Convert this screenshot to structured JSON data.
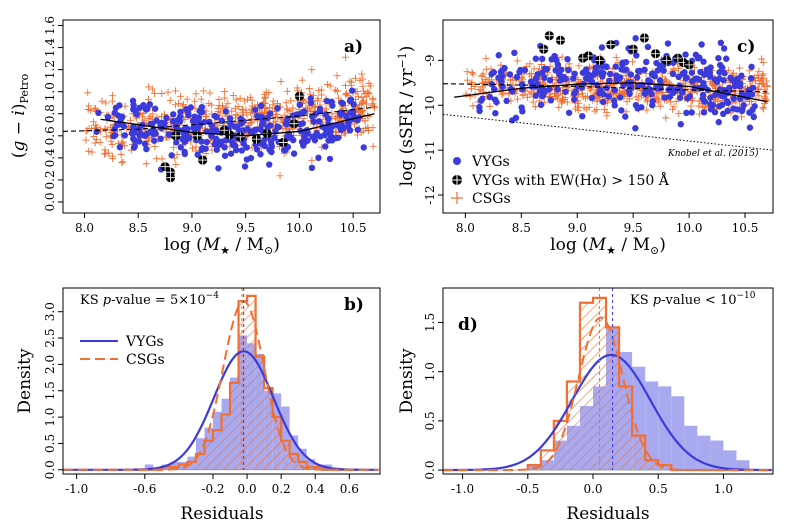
{
  "colors": {
    "vyg": "#3b3bdb",
    "csg": "#f07033",
    "vyg_fill": "#a9a9ef",
    "black": "#000000"
  },
  "chart_data": [
    {
      "id": "a",
      "type": "scatter",
      "panel_label": "a)",
      "xlabel": "log (M★ / M⊙)",
      "ylabel": "(g − i)Petro",
      "xlim": [
        7.8,
        10.75
      ],
      "ylim": [
        -0.1,
        1.65
      ],
      "xticks": [
        8.0,
        8.5,
        9.0,
        9.5,
        10.0,
        10.5
      ],
      "xtick_labels": [
        "8.0",
        "8.5",
        "9.0",
        "9.5",
        "10.0",
        "10.5"
      ],
      "yticks": [
        0.0,
        0.2,
        0.4,
        0.6,
        0.8,
        1.0,
        1.2,
        1.4,
        1.6
      ],
      "ytick_labels": [
        "0.0",
        "0.2",
        "0.4",
        "0.6",
        "0.8",
        "1.0",
        "1.2",
        "1.4",
        "1.6"
      ],
      "vyg_fit": {
        "x": [
          8.15,
          9.0,
          9.5,
          10.0,
          10.7
        ],
        "y": [
          0.75,
          0.63,
          0.6,
          0.64,
          0.8
        ]
      },
      "csg_fit": {
        "x": [
          7.8,
          8.5,
          9.0,
          9.5,
          10.0,
          10.7
        ],
        "y": [
          0.64,
          0.66,
          0.7,
          0.74,
          0.78,
          0.86
        ]
      },
      "halpha_points": {
        "x": [
          8.75,
          8.8,
          8.8,
          8.85,
          9.05,
          9.1,
          9.3,
          9.35,
          9.45,
          9.6,
          9.7,
          9.85,
          9.95,
          10.0
        ],
        "y": [
          0.32,
          0.27,
          0.22,
          0.6,
          0.6,
          0.38,
          0.65,
          0.61,
          0.59,
          0.57,
          0.62,
          0.54,
          0.71,
          0.96
        ]
      }
    },
    {
      "id": "c",
      "type": "scatter",
      "panel_label": "c)",
      "xlabel": "log (M★ / M⊙)",
      "ylabel": "log (sSFR / yr⁻¹)",
      "xlim": [
        7.8,
        10.75
      ],
      "ylim": [
        -12.4,
        -8.1
      ],
      "xticks": [
        8.0,
        8.5,
        9.0,
        9.5,
        10.0,
        10.5
      ],
      "xtick_labels": [
        "8.0",
        "8.5",
        "9.0",
        "9.5",
        "10.0",
        "10.5"
      ],
      "yticks": [
        -12,
        -11,
        -10,
        -9
      ],
      "ytick_labels": [
        "-12",
        "-11",
        "-10",
        "-9"
      ],
      "vyg_fit": {
        "x": [
          7.9,
          8.5,
          9.0,
          9.5,
          10.0,
          10.7
        ],
        "y": [
          -9.82,
          -9.62,
          -9.53,
          -9.5,
          -9.58,
          -9.92
        ]
      },
      "csg_fit": {
        "x": [
          7.8,
          8.5,
          9.0,
          9.5,
          10.0,
          10.7
        ],
        "y": [
          -9.52,
          -9.55,
          -9.58,
          -9.62,
          -9.66,
          -9.7
        ]
      },
      "knobel_line": {
        "x": [
          7.8,
          10.75
        ],
        "y": [
          -10.2,
          -11.0
        ],
        "label": "Knobel et al. (2015)"
      },
      "halpha_points": {
        "x": [
          8.75,
          8.85,
          8.7,
          9.1,
          9.2,
          9.3,
          9.5,
          9.6,
          9.7,
          9.9,
          9.8,
          9.95,
          10.0,
          9.05
        ],
        "y": [
          -8.45,
          -8.55,
          -8.75,
          -8.9,
          -9.0,
          -8.65,
          -8.75,
          -8.5,
          -8.85,
          -8.95,
          -9.0,
          -9.05,
          -9.1,
          -8.95
        ]
      },
      "legend": [
        "VYGs",
        "VYGs with EW(Hα) > 150 Å",
        "CSGs"
      ]
    },
    {
      "id": "b",
      "type": "bar",
      "panel_label": "b)",
      "xlabel": "Residuals",
      "ylabel": "Density",
      "xlim": [
        -1.08,
        0.78
      ],
      "ylim": [
        -0.08,
        3.45
      ],
      "xticks": [
        -1.0,
        -0.6,
        -0.2,
        0.0,
        0.2,
        0.4,
        0.6
      ],
      "xtick_labels": [
        "-1.0",
        "-0.6",
        "-0.2",
        "0.0",
        "0.2",
        "0.4",
        "0.6"
      ],
      "yticks": [
        0.0,
        0.5,
        1.0,
        1.5,
        2.0,
        2.5,
        3.0
      ],
      "ytick_labels": [
        "0.0",
        "0.5",
        "1.0",
        "1.5",
        "2.0",
        "2.5",
        "3.0"
      ],
      "bin_edges": [
        -0.65,
        -0.6,
        -0.55,
        -0.5,
        -0.45,
        -0.4,
        -0.35,
        -0.3,
        -0.25,
        -0.2,
        -0.15,
        -0.1,
        -0.05,
        0.0,
        0.05,
        0.1,
        0.15,
        0.2,
        0.25,
        0.3,
        0.35,
        0.4,
        0.45,
        0.5,
        0.55,
        0.6,
        0.65
      ],
      "vyg_hist": [
        0.0,
        0.1,
        0.0,
        0.1,
        0.15,
        0.15,
        0.25,
        0.6,
        0.8,
        1.1,
        1.35,
        1.75,
        2.55,
        2.4,
        2.2,
        1.5,
        1.45,
        1.2,
        0.65,
        0.4,
        0.2,
        0.1,
        0.1,
        0.0,
        0.0,
        0.0
      ],
      "csg_hist": [
        0.0,
        0.0,
        0.0,
        0.05,
        0.05,
        0.1,
        0.15,
        0.3,
        0.55,
        0.75,
        1.05,
        1.65,
        3.2,
        3.3,
        2.15,
        1.55,
        1.0,
        0.55,
        0.3,
        0.15,
        0.05,
        0.05,
        0.0,
        0.0,
        0.0,
        0.0
      ],
      "vyg_kde": {
        "mean": -0.02,
        "sd": 0.175,
        "scale": 2.25
      },
      "csg_kde": {
        "mean": -0.02,
        "sd": 0.12,
        "scale": 3.2
      },
      "vyg_median": -0.02,
      "csg_median": -0.03,
      "annotation": {
        "prefix": "KS ",
        "italic": "p",
        "suffix": "-value = 5×10",
        "sup": "−4"
      },
      "legend": [
        "VYGs",
        "CSGs"
      ]
    },
    {
      "id": "d",
      "type": "bar",
      "panel_label": "d)",
      "xlabel": "Residuals",
      "ylabel": "Density",
      "xlim": [
        -1.15,
        1.38
      ],
      "ylim": [
        -0.04,
        1.85
      ],
      "xticks": [
        -1.0,
        -0.5,
        0.0,
        0.5,
        1.0
      ],
      "xtick_labels": [
        "-1.0",
        "-0.5",
        "0.0",
        "0.5",
        "1.0"
      ],
      "yticks": [
        0.0,
        0.5,
        1.0,
        1.5
      ],
      "ytick_labels": [
        "0.0",
        "0.5",
        "1.0",
        "1.5"
      ],
      "bin_edges": [
        -0.5,
        -0.4,
        -0.3,
        -0.2,
        -0.1,
        0.0,
        0.1,
        0.2,
        0.3,
        0.4,
        0.5,
        0.6,
        0.7,
        0.8,
        0.9,
        1.0,
        1.1,
        1.2
      ],
      "vyg_hist": [
        0.05,
        0.1,
        0.3,
        0.45,
        0.65,
        0.85,
        1.45,
        1.2,
        1.05,
        0.9,
        0.85,
        0.75,
        0.45,
        0.35,
        0.3,
        0.2,
        0.1
      ],
      "csg_hist": [
        0.05,
        0.2,
        0.5,
        0.9,
        1.7,
        1.75,
        1.45,
        0.85,
        0.35,
        0.1,
        0.05,
        0.0,
        0.0,
        0.0,
        0.0,
        0.0,
        0.0
      ],
      "vyg_kde": {
        "mean": 0.14,
        "sd": 0.3,
        "scale": 1.17
      },
      "csg_kde": {
        "mean": 0.06,
        "sd": 0.17,
        "scale": 1.55
      },
      "vyg_median": 0.15,
      "csg_median": 0.05,
      "annotation": {
        "prefix": "KS ",
        "italic": "p",
        "suffix": "-value < 10",
        "sup": "−10"
      }
    }
  ]
}
